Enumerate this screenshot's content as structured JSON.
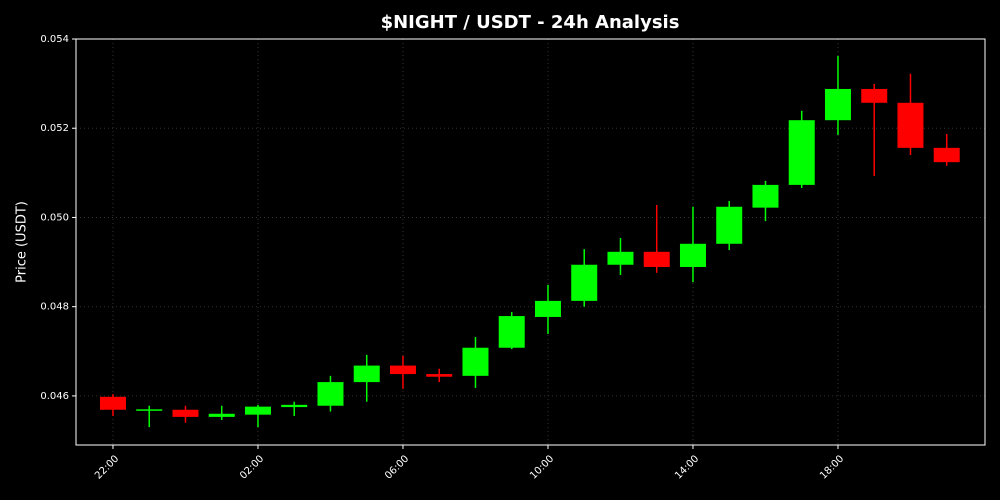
{
  "chart_data": {
    "type": "candlestick",
    "title": "$NIGHT / USDT - 24h Analysis",
    "y_label": "Price (USDT)",
    "categories": [
      "22:00",
      null,
      null,
      null,
      "02:00",
      null,
      null,
      null,
      "06:00",
      null,
      null,
      null,
      "10:00",
      null,
      null,
      null,
      "14:00",
      null,
      null,
      null,
      "18:00",
      null,
      null,
      null
    ],
    "open": [
      0.04598,
      0.04568,
      0.04569,
      0.04553,
      0.04558,
      0.04575,
      0.04578,
      0.04631,
      0.04668,
      0.04649,
      0.04645,
      0.04708,
      0.04777,
      0.04813,
      0.04894,
      0.04923,
      0.04889,
      0.04941,
      0.05022,
      0.05073,
      0.05218,
      0.05288,
      0.05257,
      0.05156
    ],
    "high": [
      0.04604,
      0.04578,
      0.04578,
      0.04578,
      0.0458,
      0.04587,
      0.04645,
      0.04692,
      0.0469,
      0.04661,
      0.04732,
      0.04788,
      0.04849,
      0.04929,
      0.04954,
      0.05028,
      0.05024,
      0.05037,
      0.05082,
      0.05239,
      0.05362,
      0.05299,
      0.05322,
      0.05187
    ],
    "low": [
      0.04555,
      0.0453,
      0.0454,
      0.04546,
      0.0453,
      0.04555,
      0.04565,
      0.04587,
      0.04616,
      0.04631,
      0.04618,
      0.04705,
      0.04739,
      0.048,
      0.04871,
      0.04876,
      0.04855,
      0.04927,
      0.04992,
      0.05066,
      0.05185,
      0.05093,
      0.0514,
      0.05116
    ],
    "close": [
      0.04569,
      0.0457,
      0.04553,
      0.0456,
      0.04576,
      0.0458,
      0.04631,
      0.04668,
      0.04649,
      0.04643,
      0.04708,
      0.04779,
      0.04813,
      0.04894,
      0.04923,
      0.04889,
      0.04941,
      0.05024,
      0.05073,
      0.05218,
      0.05288,
      0.05257,
      0.05156,
      0.05124
    ],
    "up_color": "#00ff00",
    "down_color": "#ff0000",
    "ylim": [
      0.0449,
      0.054
    ],
    "yticks": [
      0.046,
      0.048,
      {
        "value": 0.05,
        "label": "0.050"
      },
      0.052,
      0.054
    ],
    "grid": true
  }
}
